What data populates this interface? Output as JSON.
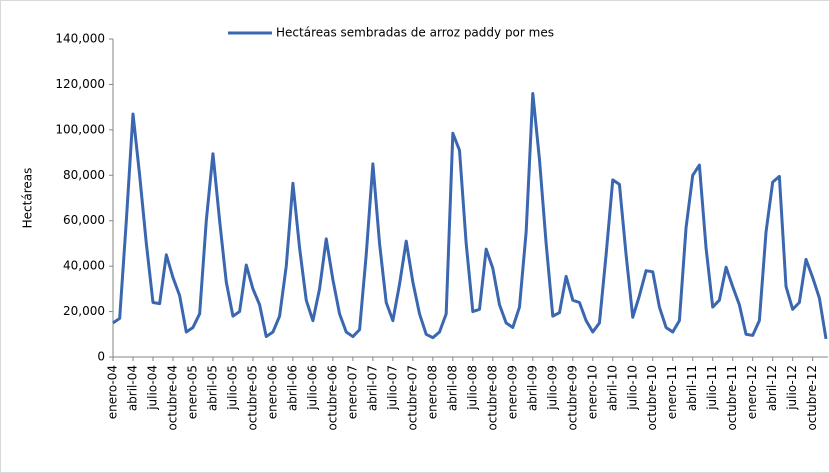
{
  "chart_data": {
    "type": "line",
    "legend_label": "Hectáreas sembradas de arroz paddy por mes",
    "y_label": "Hectáreas",
    "categories": [
      "enero-04",
      null,
      null,
      "abril-04",
      null,
      null,
      "julio-04",
      null,
      null,
      "octubre-04",
      null,
      null,
      "enero-05",
      null,
      null,
      "abril-05",
      null,
      null,
      "julio-05",
      null,
      null,
      "octubre-05",
      null,
      null,
      "enero-06",
      null,
      null,
      "abril-06",
      null,
      null,
      "julio-06",
      null,
      null,
      "octubre-06",
      null,
      null,
      "enero-07",
      null,
      null,
      "abril-07",
      null,
      null,
      "julio-07",
      null,
      null,
      "octubre-07",
      null,
      null,
      "enero-08",
      null,
      null,
      "abril-08",
      null,
      null,
      "julio-08",
      null,
      null,
      "octubre-08",
      null,
      null,
      "enero-09",
      null,
      null,
      "abril-09",
      null,
      null,
      "julio-09",
      null,
      null,
      "octubre-09",
      null,
      null,
      "enero-10",
      null,
      null,
      "abril-10",
      null,
      null,
      "julio-10",
      null,
      null,
      "octubre-10",
      null,
      null,
      "enero-11",
      null,
      null,
      "abril-11",
      null,
      null,
      "julio-11",
      null,
      null,
      "octubre-11",
      null,
      null,
      "enero-12",
      null,
      null,
      "abril-12",
      null,
      null,
      "julio-12",
      null,
      null,
      "octubre-12",
      null,
      null
    ],
    "series": [
      {
        "name": "Hectáreas sembradas de arroz paddy por mes",
        "color": "#3a67b0",
        "values": [
          15000,
          17000,
          60000,
          107000,
          80000,
          50000,
          24000,
          23500,
          45000,
          35000,
          27000,
          11000,
          13000,
          19000,
          60000,
          89500,
          60000,
          33000,
          18000,
          20000,
          40500,
          30000,
          23000,
          9000,
          11000,
          18000,
          40000,
          76500,
          48000,
          25000,
          16000,
          30000,
          52000,
          34000,
          19000,
          11000,
          9000,
          12000,
          45000,
          85000,
          50000,
          24000,
          16000,
          32000,
          51000,
          33000,
          19000,
          10000,
          8500,
          11000,
          19000,
          98500,
          91000,
          50000,
          20000,
          21000,
          47500,
          39000,
          23000,
          15000,
          13000,
          22000,
          55000,
          116000,
          87000,
          50000,
          18000,
          19500,
          35500,
          25000,
          24000,
          16000,
          11000,
          15000,
          45000,
          78000,
          76000,
          45000,
          17500,
          27000,
          38000,
          37500,
          22000,
          13000,
          11000,
          16000,
          57000,
          80000,
          84500,
          48000,
          22000,
          25000,
          39500,
          31000,
          23000,
          10000,
          9500,
          16000,
          55000,
          77000,
          79500,
          31000,
          21000,
          24000,
          43000,
          35000,
          26000,
          8000
        ]
      }
    ],
    "ylim": [
      0,
      140000
    ],
    "yticks": [
      0,
      {
        "value": 20000,
        "label": "20,000"
      },
      {
        "value": 40000,
        "label": "40,000"
      },
      {
        "value": 60000,
        "label": "60,000"
      },
      {
        "value": 80000,
        "label": "80,000"
      },
      {
        "value": 100000,
        "label": "100,000"
      },
      {
        "value": 120000,
        "label": "120,000"
      },
      {
        "value": 140000,
        "label": "140,000"
      }
    ],
    "grid": false
  }
}
